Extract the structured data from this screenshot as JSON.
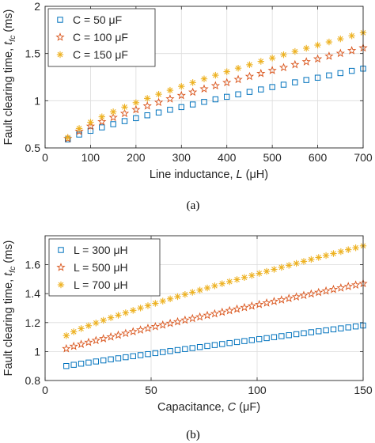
{
  "figure": {
    "captions": [
      "(a)",
      "(b)"
    ]
  },
  "chart_data": [
    {
      "type": "scatter",
      "xlabel": "Line inductance,  L (μH)",
      "xlabel_parts": {
        "text": "Line inductance,  ",
        "var": "L",
        "unit": " (μH)"
      },
      "ylabel": "Fault clearing time,  t_fc (ms)",
      "ylabel_parts": {
        "text": "Fault clearing time,  ",
        "var": "t",
        "sub": "fc",
        "unit": " (ms)"
      },
      "xlim": [
        0,
        700
      ],
      "ylim": [
        0.5,
        2
      ],
      "xticks": [
        "0",
        "100",
        "200",
        "300",
        "400",
        "500",
        "600",
        "700"
      ],
      "yticks": [
        "0.5",
        "1",
        "1.5",
        "2"
      ],
      "grid": true,
      "legend_position": "top-left",
      "x": {
        "start": 50,
        "end": 700,
        "step": 25
      },
      "series": [
        {
          "name": "C = 50 μF",
          "marker": "square",
          "color": "#0072BD",
          "y0": 0.59,
          "y1": 1.34,
          "exp": 0.82
        },
        {
          "name": "C = 100 μF",
          "marker": "star",
          "color": "#D95319",
          "y0": 0.6,
          "y1": 1.56,
          "exp": 0.78
        },
        {
          "name": "C = 150 μF",
          "marker": "asterisk",
          "color": "#EDB120",
          "y0": 0.61,
          "y1": 1.72,
          "exp": 0.75
        }
      ]
    },
    {
      "type": "scatter",
      "xlabel": "Capacitance,  C (μF)",
      "xlabel_parts": {
        "text": "Capacitance,  ",
        "var": "C",
        "unit": " (μF)"
      },
      "ylabel": "Fault clearing time,  t_fc (ms)",
      "ylabel_parts": {
        "text": "Fault clearing time,  ",
        "var": "t",
        "sub": "fc",
        "unit": " (ms)"
      },
      "xlim": [
        0,
        150
      ],
      "ylim": [
        0.8,
        1.8
      ],
      "xticks": [
        "0",
        "50",
        "100",
        "150"
      ],
      "yticks": [
        "0.8",
        "1",
        "1.2",
        "1.4",
        "1.6"
      ],
      "grid": true,
      "legend_position": "top-left",
      "x": {
        "start": 10,
        "end": 150,
        "step": 3.5
      },
      "series": [
        {
          "name": "L = 300 μH",
          "marker": "square",
          "color": "#0072BD",
          "y0": 0.9,
          "y1": 1.18,
          "exp": 0.95
        },
        {
          "name": "L = 500 μH",
          "marker": "star",
          "color": "#D95319",
          "y0": 1.02,
          "y1": 1.47,
          "exp": 0.9
        },
        {
          "name": "L = 700 μH",
          "marker": "asterisk",
          "color": "#EDB120",
          "y0": 1.11,
          "y1": 1.73,
          "exp": 0.85
        }
      ]
    }
  ]
}
